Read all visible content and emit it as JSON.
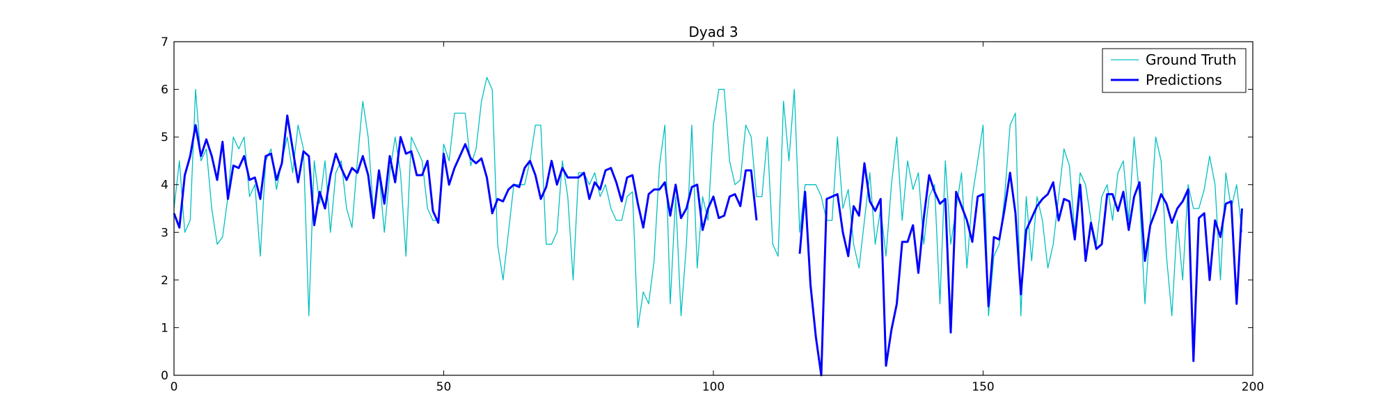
{
  "chart_data": {
    "type": "line",
    "title": "Dyad 3",
    "xlabel": "",
    "ylabel": "",
    "xlim": [
      0,
      200
    ],
    "ylim": [
      0,
      7
    ],
    "xticks": [
      0,
      50,
      100,
      150,
      200
    ],
    "yticks": [
      0,
      1,
      2,
      3,
      4,
      5,
      6,
      7
    ],
    "legend_position": "top-right",
    "series": [
      {
        "name": "Ground Truth",
        "color": "#00bfbf",
        "line_width": "thin",
        "x_start": 0,
        "values": [
          3.5,
          4.5,
          3.0,
          3.25,
          6.0,
          4.5,
          4.75,
          3.5,
          2.75,
          2.9,
          3.75,
          5.0,
          4.75,
          5.0,
          3.75,
          4.0,
          2.5,
          4.5,
          4.75,
          3.9,
          4.5,
          5.0,
          4.25,
          5.25,
          4.75,
          1.25,
          4.5,
          3.6,
          4.5,
          3.0,
          4.25,
          4.5,
          3.5,
          3.1,
          4.5,
          5.75,
          5.0,
          3.4,
          4.25,
          3.0,
          4.25,
          5.0,
          4.25,
          2.5,
          5.0,
          4.75,
          4.5,
          3.5,
          3.25,
          3.25,
          4.85,
          4.5,
          5.5,
          5.5,
          5.5,
          4.4,
          4.75,
          5.75,
          6.25,
          6.0,
          2.75,
          2.0,
          3.0,
          4.0,
          4.0,
          4.0,
          4.5,
          5.25,
          5.25,
          2.75,
          2.75,
          3.0,
          4.5,
          3.75,
          2.0,
          4.25,
          4.25,
          4.0,
          4.25,
          3.75,
          4.0,
          3.5,
          3.25,
          3.25,
          3.75,
          3.85,
          1.0,
          1.75,
          1.5,
          2.4,
          4.4,
          5.25,
          1.5,
          3.75,
          1.25,
          2.75,
          5.25,
          2.25,
          3.75,
          3.25,
          5.25,
          6.0,
          6.0,
          4.5,
          4.0,
          4.1,
          5.25,
          5.0,
          3.75,
          3.75,
          5.0,
          2.75,
          2.5,
          5.75,
          4.5,
          6.0,
          3.0,
          4.0,
          4.0,
          4.0,
          3.75,
          3.25,
          3.25,
          5.0,
          3.5,
          3.9,
          2.75,
          2.25,
          3.25,
          4.25,
          2.75,
          3.5,
          2.5,
          4.0,
          5.0,
          3.25,
          4.5,
          3.9,
          4.25,
          2.75,
          3.75,
          4.0,
          1.5,
          4.5,
          2.75,
          3.5,
          4.25,
          2.25,
          3.75,
          4.5,
          5.25,
          1.25,
          2.5,
          2.75,
          3.75,
          5.25,
          5.5,
          1.25,
          3.75,
          2.4,
          3.75,
          3.25,
          2.25,
          2.75,
          3.75,
          4.75,
          4.4,
          3.0,
          4.25,
          4.0,
          3.25,
          2.75,
          3.75,
          4.0,
          3.25,
          4.25,
          4.5,
          3.25,
          5.0,
          3.75,
          1.5,
          3.25,
          5.0,
          4.5,
          2.5,
          1.25,
          3.25,
          2.0,
          4.0,
          3.5,
          3.5,
          3.9,
          4.6,
          4.0,
          2.0,
          4.25,
          3.5,
          4.0,
          3.0
        ]
      },
      {
        "name": "Predictions",
        "color": "#0000ff",
        "line_width": "thick",
        "x_start": 0,
        "values": [
          3.4,
          3.1,
          4.2,
          4.6,
          5.25,
          4.6,
          4.95,
          4.6,
          4.1,
          4.9,
          3.7,
          4.4,
          4.35,
          4.6,
          4.1,
          4.15,
          3.7,
          4.6,
          4.65,
          4.1,
          4.45,
          5.45,
          4.75,
          4.05,
          4.7,
          4.6,
          3.15,
          3.85,
          3.5,
          4.2,
          4.65,
          4.35,
          4.1,
          4.35,
          4.25,
          4.6,
          4.2,
          3.3,
          4.3,
          3.6,
          4.6,
          4.05,
          5.0,
          4.65,
          4.7,
          4.2,
          4.2,
          4.5,
          3.45,
          3.2,
          4.65,
          4.0,
          4.35,
          4.6,
          4.85,
          4.55,
          4.45,
          4.55,
          4.15,
          3.4,
          3.7,
          3.65,
          3.9,
          4.0,
          3.95,
          4.35,
          4.5,
          4.2,
          3.7,
          3.95,
          4.5,
          4.0,
          4.35,
          4.15,
          4.15,
          4.15,
          4.25,
          3.7,
          4.05,
          3.9,
          4.3,
          4.35,
          4.05,
          3.65,
          4.15,
          4.2,
          3.6,
          3.1,
          3.8,
          3.9,
          3.9,
          4.05,
          3.35,
          4.0,
          3.3,
          3.5,
          3.95,
          4.0,
          3.05,
          3.5,
          3.75,
          3.3,
          3.35,
          3.75,
          3.8,
          3.55,
          4.3,
          4.3,
          3.25,
          null,
          null,
          null,
          null,
          null,
          null,
          null,
          2.55,
          3.85,
          1.9,
          0.8,
          0.0,
          3.7,
          3.75,
          3.8,
          3.0,
          2.5,
          3.55,
          3.35,
          4.45,
          3.65,
          3.45,
          3.7,
          0.2,
          0.95,
          1.5,
          2.8,
          2.8,
          3.15,
          2.15,
          3.3,
          4.2,
          3.85,
          3.6,
          3.7,
          0.9,
          3.85,
          3.55,
          3.25,
          2.8,
          3.75,
          3.8,
          1.45,
          2.9,
          2.85,
          3.5,
          4.25,
          3.4,
          1.7,
          3.05,
          3.3,
          3.55,
          3.7,
          3.8,
          4.05,
          3.25,
          3.7,
          3.65,
          2.85,
          4.0,
          2.4,
          3.2,
          2.65,
          2.75,
          3.8,
          3.8,
          3.45,
          3.85,
          3.05,
          3.75,
          4.05,
          2.4,
          3.15,
          3.45,
          3.8,
          3.6,
          3.2,
          3.5,
          3.65,
          3.9,
          0.3,
          3.3,
          3.4,
          2.0,
          3.25,
          2.9,
          3.6,
          3.65,
          1.5,
          3.5
        ]
      }
    ]
  }
}
